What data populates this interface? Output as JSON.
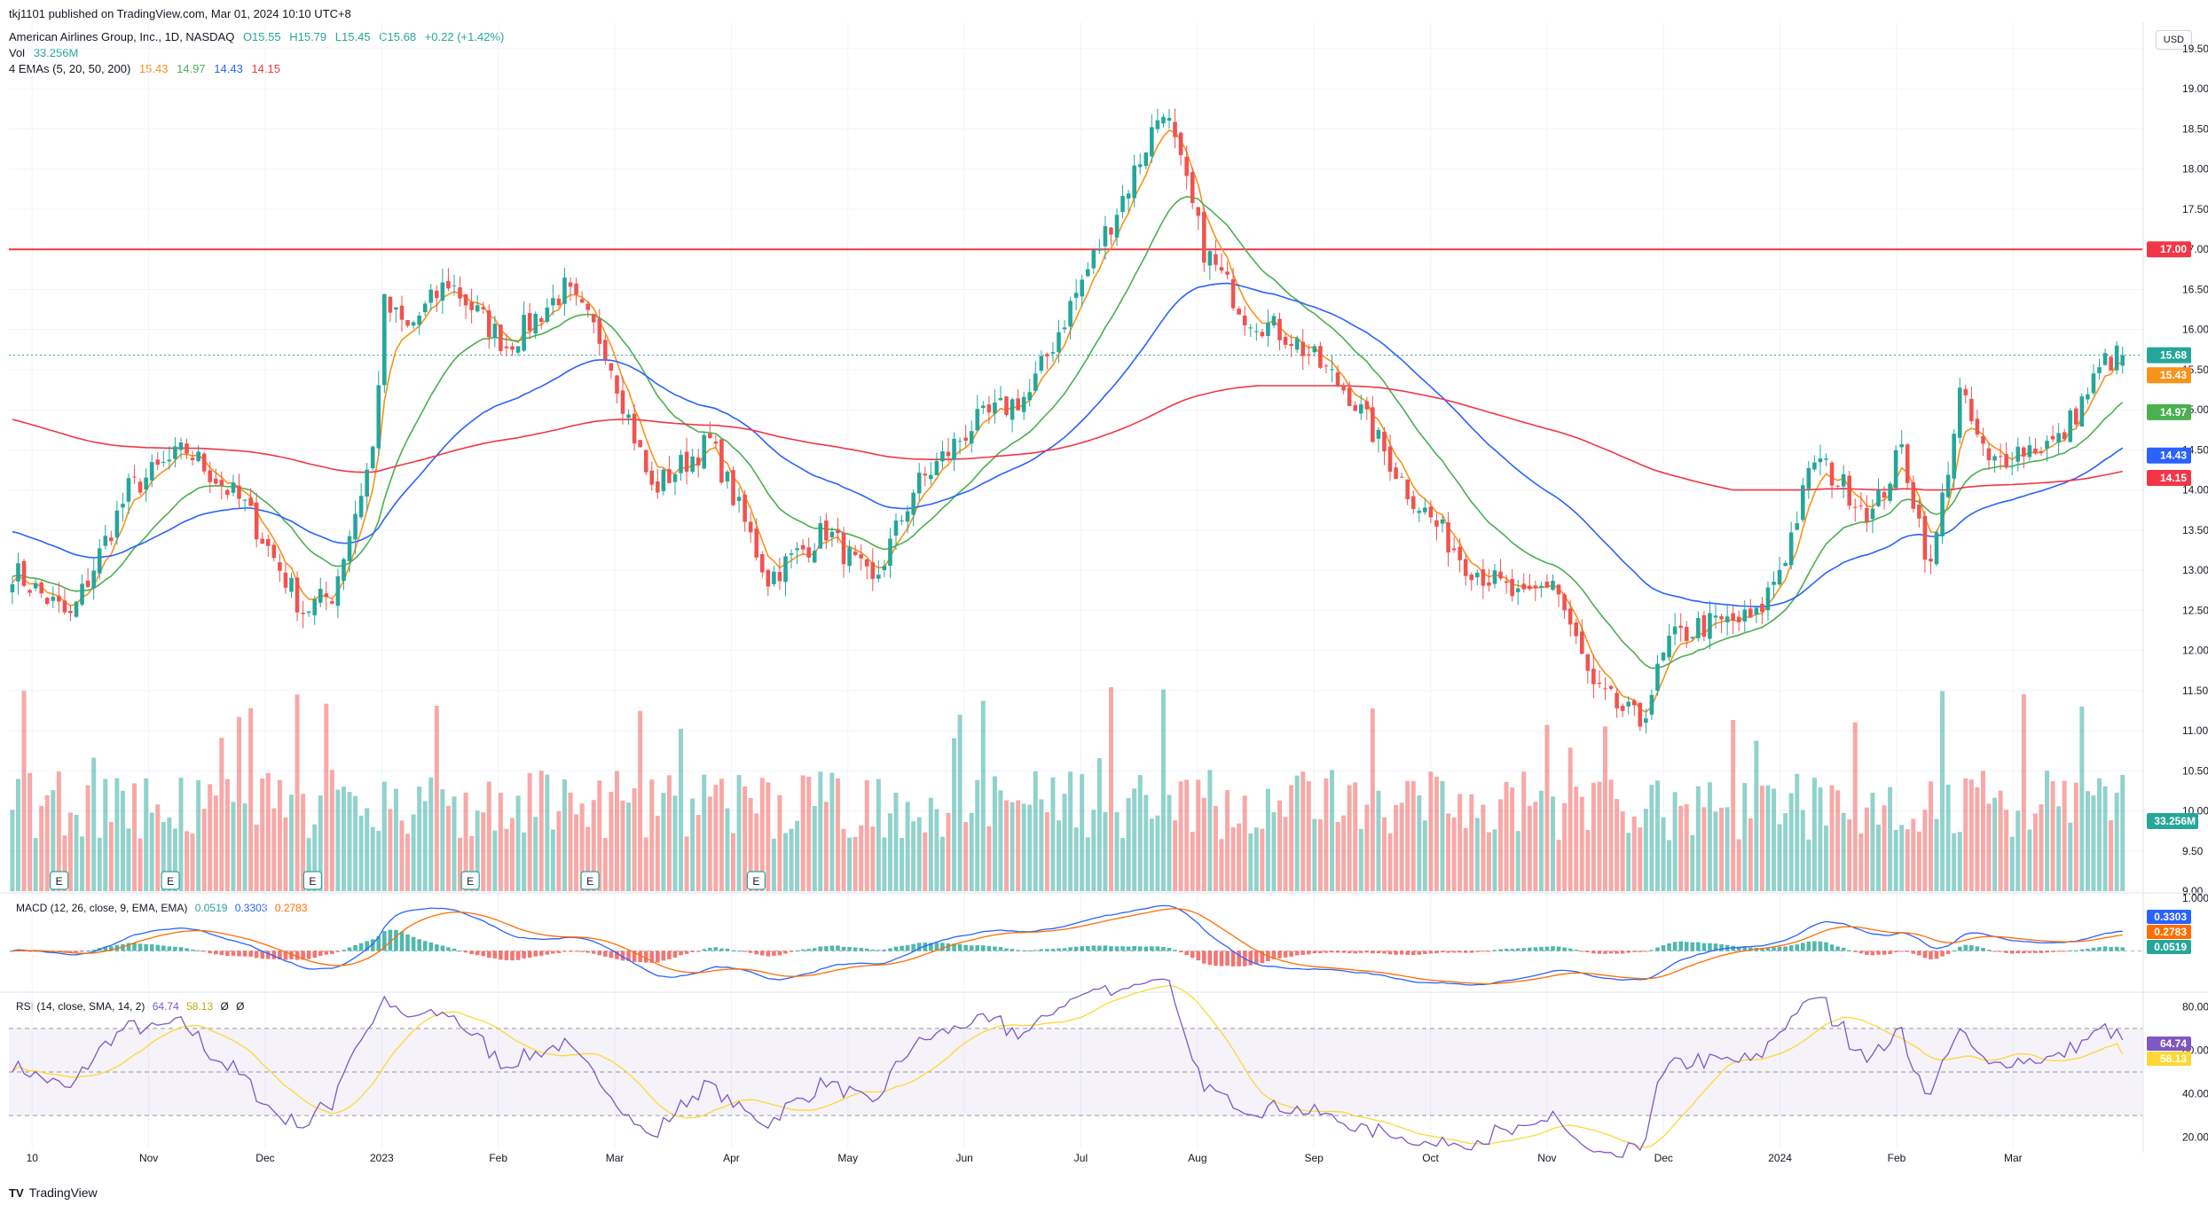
{
  "header": {
    "published": "tkj1101 published on TradingView.com, Mar 01, 2024 10:10 UTC+8",
    "symbol": "American Airlines Group, Inc., 1D, NASDAQ",
    "o": "O15.55",
    "h": "H15.79",
    "l": "L15.45",
    "c": "C15.68",
    "chg": "+0.22 (+1.42%)",
    "vol_label": "Vol",
    "vol_value": "33.256M",
    "ema_label": "4 EMAs (5, 20, 50, 200)",
    "ema_values": [
      "15.43",
      "14.97",
      "14.43",
      "14.15"
    ],
    "currency": "USD"
  },
  "macd_header": {
    "label": "MACD (12, 26, close, 9, EMA, EMA)",
    "values": [
      "0.0519",
      "0.3303",
      "0.2783"
    ]
  },
  "rsi_header": {
    "label": "RSI (14, close, SMA, 14, 2)",
    "values": [
      "64.74",
      "58.13",
      "Ø",
      "Ø"
    ]
  },
  "footer": {
    "brand": "TradingView"
  },
  "colors": {
    "up": "#26a69a",
    "down": "#ef5350",
    "ema5": "#f7931a",
    "ema20": "#4caf50",
    "ema50": "#2962ff",
    "ema200": "#f23645",
    "hline": "#f23645",
    "macd": "#2962ff",
    "signal": "#ff6d00",
    "rsi": "#7e57c2",
    "rsima": "#fdd835"
  },
  "chart_data": {
    "type": "candlestick",
    "y_ticks": [
      "19.50",
      "19.00",
      "18.50",
      "18.00",
      "17.50",
      "17.00",
      "16.50",
      "16.00",
      "15.50",
      "15.00",
      "14.50",
      "14.00",
      "13.50",
      "13.00",
      "12.50",
      "12.00",
      "11.50",
      "11.00",
      "10.50",
      "10.00",
      "9.50",
      "9.00"
    ],
    "ylim": [
      9.0,
      19.5
    ],
    "x_ticks": [
      "10",
      "Nov",
      "Dec",
      "2023",
      "Feb",
      "Mar",
      "Apr",
      "May",
      "Jun",
      "Jul",
      "Aug",
      "Sep",
      "Oct",
      "Nov",
      "Dec",
      "2024",
      "Feb",
      "Mar"
    ],
    "horizontal_line": 17.0,
    "price_tags": [
      "17.00",
      "15.68",
      "15.43",
      "14.97",
      "14.43",
      "14.15"
    ],
    "volume_tag": "33.256M",
    "earnings_markers": [
      "E",
      "E",
      "E",
      "E",
      "E",
      "E"
    ],
    "close_keypoints": [
      [
        0,
        13.0
      ],
      [
        10,
        12.4
      ],
      [
        20,
        14.0
      ],
      [
        30,
        14.5
      ],
      [
        40,
        13.8
      ],
      [
        50,
        12.5
      ],
      [
        55,
        12.7
      ],
      [
        62,
        14.5
      ],
      [
        64,
        16.3
      ],
      [
        68,
        16.0
      ],
      [
        75,
        16.6
      ],
      [
        85,
        15.8
      ],
      [
        95,
        16.5
      ],
      [
        102,
        15.8
      ],
      [
        110,
        14.0
      ],
      [
        120,
        14.6
      ],
      [
        130,
        12.9
      ],
      [
        140,
        13.5
      ],
      [
        148,
        12.8
      ],
      [
        155,
        14.0
      ],
      [
        165,
        14.8
      ],
      [
        175,
        15.2
      ],
      [
        182,
        16.3
      ],
      [
        192,
        17.8
      ],
      [
        198,
        18.8
      ],
      [
        205,
        17.0
      ],
      [
        212,
        16.2
      ],
      [
        220,
        15.9
      ],
      [
        230,
        15.2
      ],
      [
        240,
        14.0
      ],
      [
        250,
        13.1
      ],
      [
        260,
        12.6
      ],
      [
        265,
        12.9
      ],
      [
        272,
        11.5
      ],
      [
        280,
        11.1
      ],
      [
        285,
        12.1
      ],
      [
        290,
        12.3
      ],
      [
        300,
        12.4
      ],
      [
        305,
        13.2
      ],
      [
        310,
        14.4
      ],
      [
        320,
        13.7
      ],
      [
        325,
        14.5
      ],
      [
        330,
        13.0
      ],
      [
        335,
        15.2
      ],
      [
        340,
        14.3
      ],
      [
        345,
        14.5
      ],
      [
        352,
        14.6
      ],
      [
        360,
        15.6
      ],
      [
        363,
        15.68
      ]
    ],
    "ema_series": [
      {
        "name": "EMA 5",
        "period": 5,
        "last": 15.43
      },
      {
        "name": "EMA 20",
        "period": 20,
        "last": 14.97
      },
      {
        "name": "EMA 50",
        "period": 50,
        "last": 14.43
      },
      {
        "name": "EMA 200",
        "period": 200,
        "last": 14.15
      }
    ],
    "macd": {
      "ylim": [
        -0.8,
        1.0
      ],
      "y_ticks": [
        "1.0000"
      ],
      "last": {
        "hist": 0.0519,
        "macd": 0.3303,
        "signal": 0.2783
      }
    },
    "rsi": {
      "ylim": [
        15,
        85
      ],
      "y_ticks": [
        "80.00",
        "60.00",
        "40.00",
        "20.00"
      ],
      "bands": [
        30,
        70
      ],
      "last": {
        "rsi": 64.74,
        "ma": 58.13
      }
    }
  }
}
